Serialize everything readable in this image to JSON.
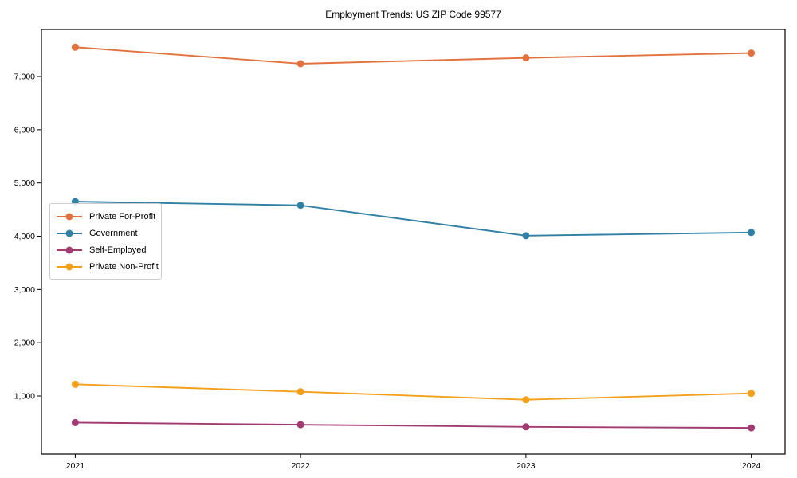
{
  "chart_data": {
    "type": "line",
    "title": "Employment Trends: US ZIP Code 99577",
    "xlabel": "",
    "ylabel": "",
    "x": [
      2021,
      2022,
      2023,
      2024
    ],
    "xtick_labels": [
      "2021",
      "2022",
      "2023",
      "2024"
    ],
    "ytick_values": [
      1000,
      2000,
      3000,
      4000,
      5000,
      6000,
      7000
    ],
    "ytick_labels": [
      "1,000",
      "2,000",
      "3,000",
      "4,000",
      "5,000",
      "6,000",
      "7,000"
    ],
    "xlim": [
      2020.85,
      2024.15
    ],
    "ylim": [
      -92,
      7883
    ],
    "grid": false,
    "legend_position": "center-left",
    "frame": "full-box",
    "background_color": "#ffffff",
    "axis_color": "#000000",
    "series": [
      {
        "name": "Private For-Profit",
        "color": "#e2713d",
        "values": [
          7550,
          7240,
          7350,
          7440
        ]
      },
      {
        "name": "Government",
        "color": "#3181a7",
        "values": [
          4650,
          4580,
          4010,
          4070
        ]
      },
      {
        "name": "Self-Employed",
        "color": "#a23b72",
        "values": [
          500,
          460,
          420,
          400
        ]
      },
      {
        "name": "Private Non-Profit",
        "color": "#f5a01b",
        "values": [
          1220,
          1080,
          930,
          1050
        ]
      }
    ]
  }
}
